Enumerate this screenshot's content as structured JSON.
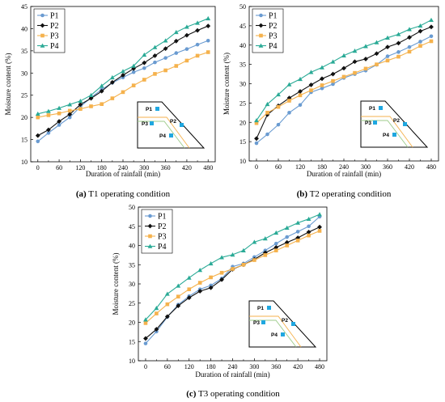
{
  "chart_data": [
    {
      "type": "line",
      "caption_letter": "(a)",
      "caption_text": " T1 operating condition",
      "xlabel": "Duration of rainfall (min)",
      "ylabel": "Moisture content (%)",
      "xlim": [
        -20,
        500
      ],
      "ylim": [
        10,
        45
      ],
      "xticks": [
        0,
        60,
        120,
        180,
        240,
        300,
        360,
        420,
        480
      ],
      "yticks": [
        10,
        15,
        20,
        25,
        30,
        35,
        40,
        45
      ],
      "grid": false,
      "legend_position": "top-left",
      "inset_labels": [
        "P1",
        "P2",
        "P3",
        "P4"
      ],
      "x": [
        0,
        30,
        60,
        90,
        120,
        150,
        180,
        210,
        240,
        270,
        300,
        330,
        360,
        390,
        420,
        450,
        480
      ],
      "series": [
        {
          "name": "P1",
          "color": "#6a9bd1",
          "marker": "circle",
          "values": [
            14.6,
            16.5,
            18.3,
            20.0,
            22.4,
            24.5,
            26.3,
            27.8,
            29.0,
            30.2,
            31.1,
            32.4,
            33.4,
            34.5,
            35.4,
            36.4,
            37.3
          ]
        },
        {
          "name": "P2",
          "color": "#111111",
          "marker": "diamond",
          "values": [
            15.9,
            17.2,
            19.1,
            20.7,
            22.9,
            24.3,
            25.9,
            27.9,
            29.5,
            31.0,
            32.3,
            33.9,
            35.5,
            37.2,
            38.5,
            39.6,
            40.6
          ]
        },
        {
          "name": "P3",
          "color": "#f5b24d",
          "marker": "square",
          "values": [
            20.0,
            20.5,
            20.9,
            21.5,
            21.9,
            22.5,
            23.0,
            24.3,
            25.7,
            27.2,
            28.5,
            29.8,
            30.6,
            31.6,
            32.8,
            33.9,
            34.7
          ]
        },
        {
          "name": "P4",
          "color": "#2aaa96",
          "marker": "triangle",
          "values": [
            20.8,
            21.4,
            22.1,
            22.9,
            23.7,
            25.0,
            27.1,
            29.0,
            30.4,
            31.6,
            34.1,
            35.8,
            37.3,
            39.2,
            40.4,
            41.3,
            42.3
          ]
        }
      ]
    },
    {
      "type": "line",
      "caption_letter": "(b)",
      "caption_text": " T2 operating condition",
      "xlabel": "Duration of rainfall (min)",
      "ylabel": "Moisture content (%)",
      "xlim": [
        -20,
        500
      ],
      "ylim": [
        10,
        50
      ],
      "xticks": [
        0,
        60,
        120,
        180,
        240,
        300,
        360,
        420,
        480
      ],
      "yticks": [
        10,
        15,
        20,
        25,
        30,
        35,
        40,
        45,
        50
      ],
      "grid": false,
      "legend_position": "top-left",
      "inset_labels": [
        "P1",
        "P2",
        "P3",
        "P4"
      ],
      "x": [
        0,
        30,
        60,
        90,
        120,
        150,
        180,
        210,
        240,
        270,
        300,
        330,
        360,
        390,
        420,
        450,
        480
      ],
      "series": [
        {
          "name": "P1",
          "color": "#6a9bd1",
          "marker": "circle",
          "values": [
            14.6,
            16.9,
            19.4,
            22.5,
            24.5,
            27.8,
            28.8,
            29.9,
            31.5,
            32.5,
            33.4,
            34.9,
            37.1,
            38.2,
            39.5,
            40.9,
            42.3
          ]
        },
        {
          "name": "P2",
          "color": "#111111",
          "marker": "diamond",
          "values": [
            15.8,
            22.0,
            24.3,
            26.3,
            28.0,
            29.7,
            31.3,
            32.5,
            34.0,
            35.7,
            36.4,
            37.8,
            39.5,
            40.5,
            42.0,
            43.6,
            44.7
          ]
        },
        {
          "name": "P3",
          "color": "#f5b24d",
          "marker": "square",
          "values": [
            19.8,
            22.5,
            24.0,
            25.6,
            27.0,
            28.3,
            29.6,
            30.7,
            31.8,
            32.8,
            33.9,
            35.0,
            36.0,
            37.0,
            38.3,
            39.8,
            41.0
          ]
        },
        {
          "name": "P4",
          "color": "#2aaa96",
          "marker": "triangle",
          "values": [
            20.5,
            24.7,
            27.2,
            29.8,
            31.2,
            33.0,
            34.2,
            35.7,
            37.3,
            38.5,
            39.7,
            40.7,
            41.9,
            42.8,
            44.1,
            45.0,
            46.5
          ]
        }
      ]
    },
    {
      "type": "line",
      "caption_letter": "(c)",
      "caption_text": " T3 operating condition",
      "xlabel": "Duration of rainfall (min)",
      "ylabel": "Moisture content (%)",
      "xlim": [
        -20,
        500
      ],
      "ylim": [
        10,
        50
      ],
      "xticks": [
        0,
        60,
        120,
        180,
        240,
        300,
        360,
        420,
        480
      ],
      "yticks": [
        10,
        15,
        20,
        25,
        30,
        35,
        40,
        45,
        50
      ],
      "grid": false,
      "legend_position": "top-left",
      "inset_labels": [
        "P1",
        "P2",
        "P3",
        "P4"
      ],
      "x": [
        0,
        30,
        60,
        90,
        120,
        150,
        180,
        210,
        240,
        270,
        300,
        330,
        360,
        390,
        420,
        450,
        480
      ],
      "series": [
        {
          "name": "P1",
          "color": "#6a9bd1",
          "marker": "circle",
          "values": [
            14.5,
            17.6,
            21.4,
            24.6,
            26.8,
            28.6,
            29.6,
            31.4,
            34.5,
            35.3,
            37.0,
            38.7,
            40.5,
            42.2,
            43.6,
            45.0,
            47.5
          ]
        },
        {
          "name": "P2",
          "color": "#111111",
          "marker": "diamond",
          "values": [
            15.8,
            18.2,
            21.5,
            24.3,
            26.4,
            28.1,
            29.0,
            31.1,
            33.8,
            35.0,
            36.4,
            38.1,
            39.5,
            40.8,
            42.0,
            43.5,
            44.8
          ]
        },
        {
          "name": "P3",
          "color": "#f5b24d",
          "marker": "square",
          "values": [
            19.8,
            22.3,
            24.7,
            26.7,
            28.6,
            30.3,
            31.7,
            32.9,
            33.9,
            35.0,
            36.2,
            37.5,
            38.7,
            40.0,
            41.3,
            42.6,
            43.8
          ]
        },
        {
          "name": "P4",
          "color": "#2aaa96",
          "marker": "triangle",
          "values": [
            20.7,
            23.7,
            27.4,
            29.5,
            31.6,
            33.6,
            35.3,
            36.9,
            37.6,
            38.7,
            40.9,
            41.8,
            43.3,
            44.6,
            45.9,
            46.9,
            48.1
          ]
        }
      ]
    }
  ]
}
